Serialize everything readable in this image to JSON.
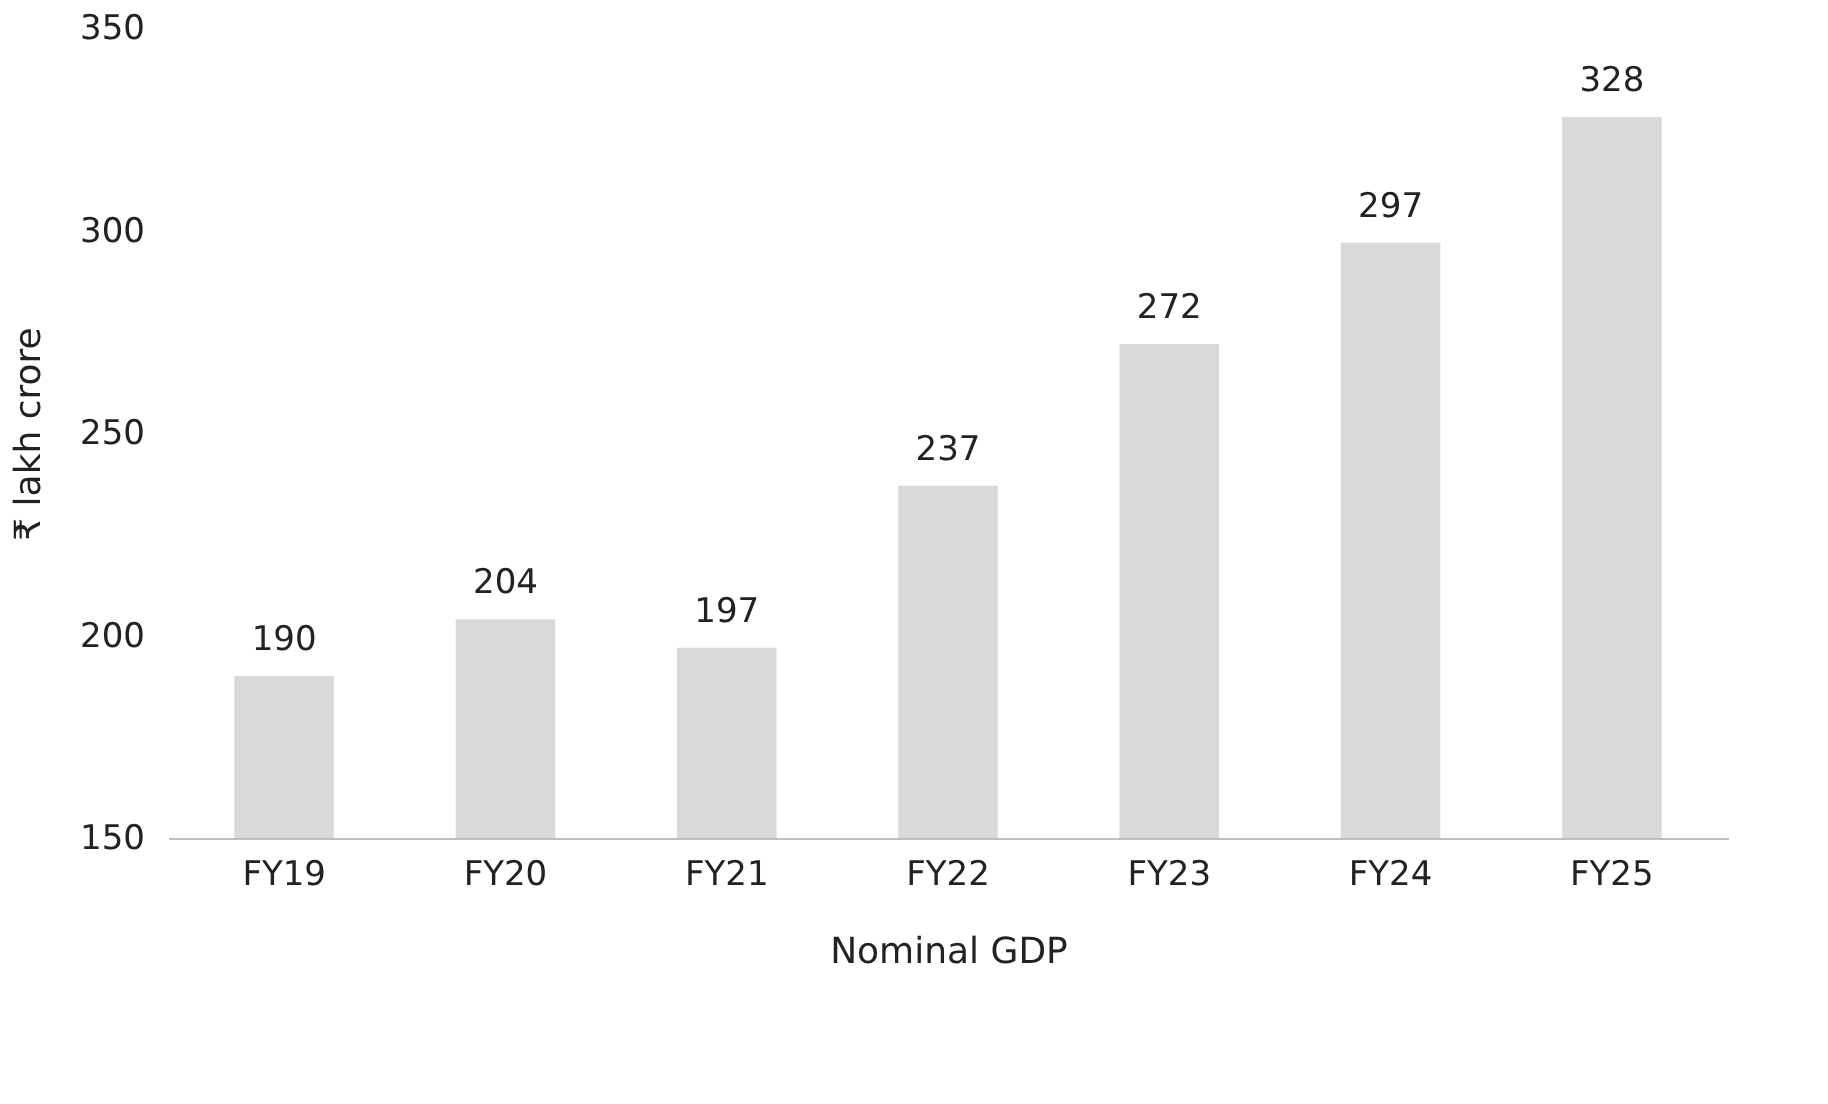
{
  "chart_data": {
    "type": "bar",
    "xlabel": "Nominal GDP",
    "ylabel": "₹ lakh crore",
    "categories": [
      "FY19",
      "FY20",
      "FY21",
      "FY22",
      "FY23",
      "FY24",
      "FY25"
    ],
    "values": [
      190,
      204,
      197,
      237,
      272,
      297,
      328
    ],
    "color": "#d9d9d9",
    "ylim": [
      150,
      350
    ],
    "yticks": [
      150,
      200,
      250,
      300,
      350
    ],
    "grid": false,
    "data_labels": true
  }
}
